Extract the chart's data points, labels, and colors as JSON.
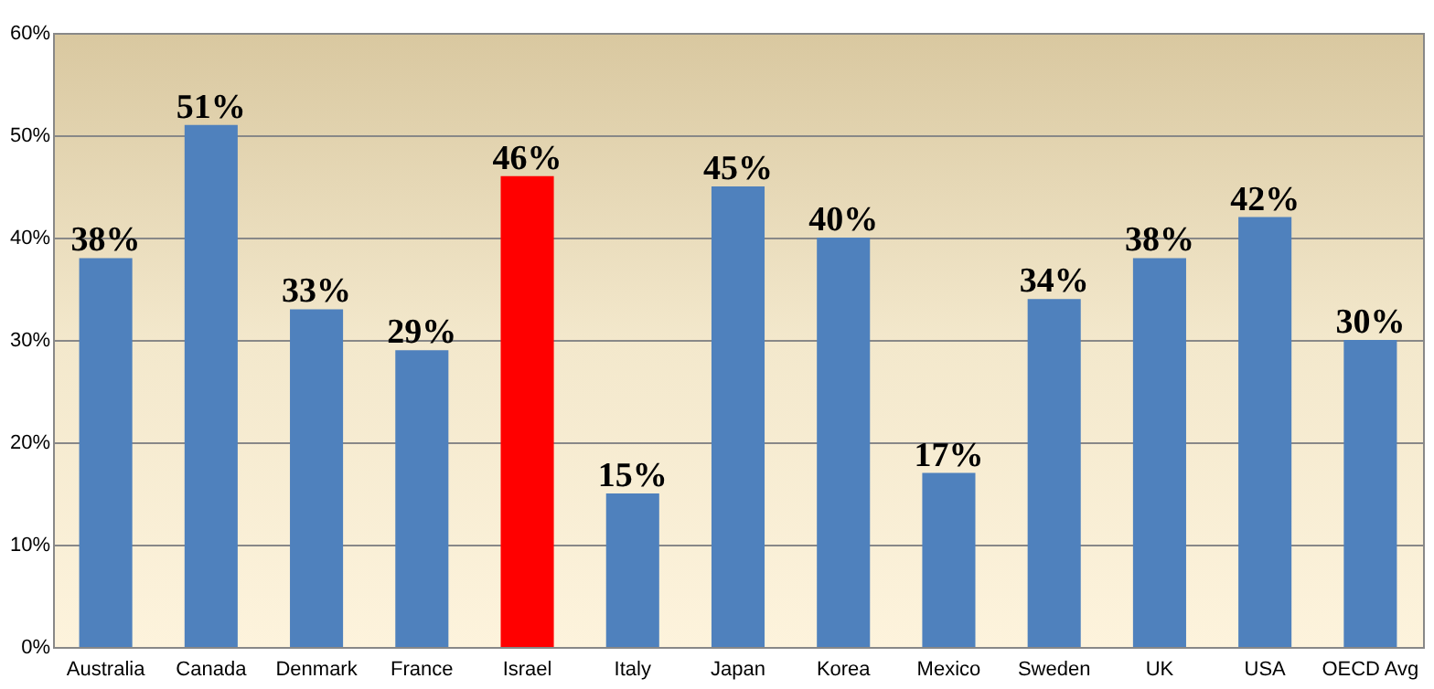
{
  "chart_data": {
    "type": "bar",
    "categories": [
      "Australia",
      "Canada",
      "Denmark",
      "France",
      "Israel",
      "Italy",
      "Japan",
      "Korea",
      "Mexico",
      "Sweden",
      "UK",
      "USA",
      "OECD Avg"
    ],
    "values": [
      38,
      51,
      33,
      29,
      46,
      15,
      45,
      40,
      17,
      34,
      38,
      42,
      30
    ],
    "colors": [
      "#4f81bd",
      "#4f81bd",
      "#4f81bd",
      "#4f81bd",
      "#ff0000",
      "#4f81bd",
      "#4f81bd",
      "#4f81bd",
      "#4f81bd",
      "#4f81bd",
      "#4f81bd",
      "#4f81bd",
      "#4f81bd"
    ],
    "value_labels": [
      "38%",
      "51%",
      "33%",
      "29%",
      "46%",
      "15%",
      "45%",
      "40%",
      "17%",
      "34%",
      "38%",
      "42%",
      "30%"
    ],
    "ylim": [
      0,
      60
    ],
    "yticks": [
      {
        "value": 0,
        "label": "0%"
      },
      {
        "value": 10,
        "label": "10%"
      },
      {
        "value": 20,
        "label": "20%"
      },
      {
        "value": 30,
        "label": "30%"
      },
      {
        "value": 40,
        "label": "40%"
      },
      {
        "value": 50,
        "label": "50%"
      },
      {
        "value": 60,
        "label": "60%"
      }
    ],
    "grid": "y"
  }
}
